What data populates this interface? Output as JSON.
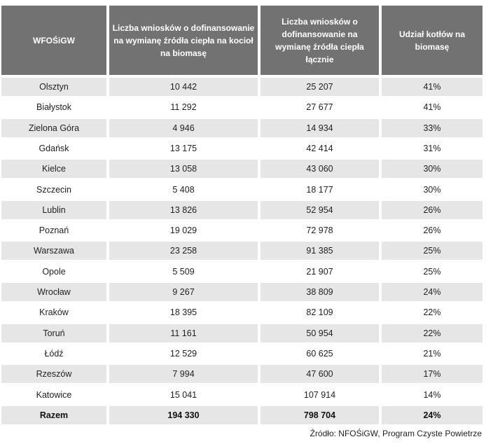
{
  "table": {
    "headers": [
      "WFOŚiGW",
      "Liczba wniosków o dofinansowanie na wymianę źródła ciepła na kocioł na biomasę",
      "Liczba wniosków o dofinansowanie na wymianę źródła ciepła łącznie",
      "Udział kotłów na biomasę"
    ],
    "rows": [
      [
        "Olsztyn",
        "10 442",
        "25 207",
        "41%"
      ],
      [
        "Białystok",
        "11 292",
        "27 677",
        "41%"
      ],
      [
        "Zielona Góra",
        "4 946",
        "14 934",
        "33%"
      ],
      [
        "Gdańsk",
        "13 175",
        "42 414",
        "31%"
      ],
      [
        "Kielce",
        "13 058",
        "43 060",
        "30%"
      ],
      [
        "Szczecin",
        "5 408",
        "18 177",
        "30%"
      ],
      [
        "Lublin",
        "13 826",
        "52 954",
        "26%"
      ],
      [
        "Poznań",
        "19 029",
        "72 978",
        "26%"
      ],
      [
        "Warszawa",
        "23 258",
        "91 385",
        "25%"
      ],
      [
        "Opole",
        "5 509",
        "21 907",
        "25%"
      ],
      [
        "Wrocław",
        "9 267",
        "38 809",
        "24%"
      ],
      [
        "Kraków",
        "18 395",
        "82 109",
        "22%"
      ],
      [
        "Toruń",
        "11 161",
        "50 954",
        "22%"
      ],
      [
        "Łódź",
        "12 529",
        "60 625",
        "21%"
      ],
      [
        "Rzeszów",
        "7 994",
        "47 600",
        "17%"
      ],
      [
        "Katowice",
        "15 041",
        "107 914",
        "14%"
      ]
    ],
    "total": [
      "Razem",
      "194 330",
      "798 704",
      "24%"
    ]
  },
  "source": "Źródło: NFOŚiGW, Program Czyste Powietrze"
}
